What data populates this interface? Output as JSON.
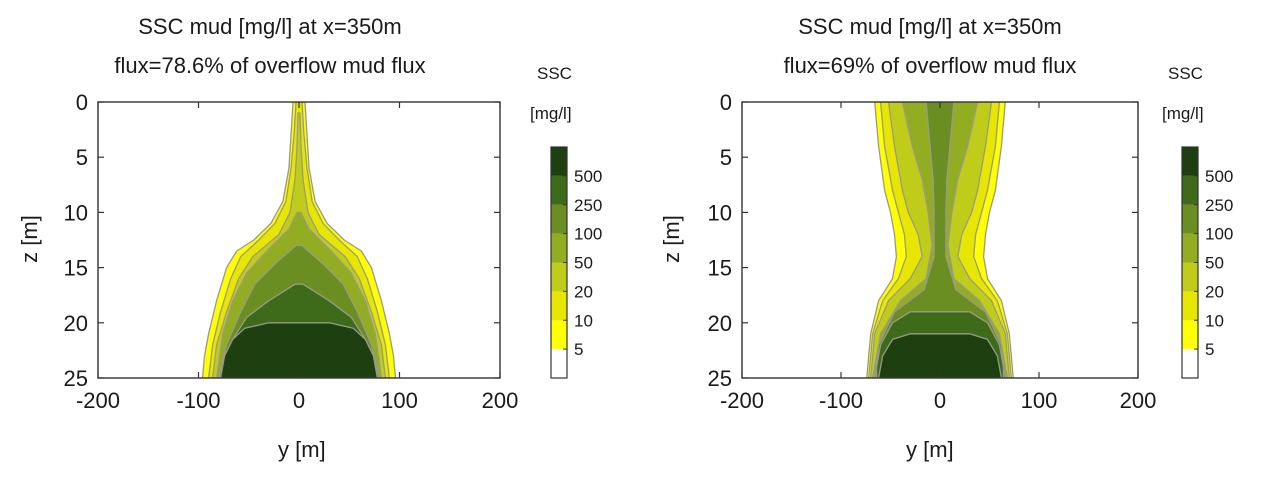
{
  "chart_data": [
    {
      "type": "heatmap",
      "title": "SSC mud [mg/l] at x=350m",
      "subtitle": "flux=78.6% of overflow mud flux",
      "xlabel": "y [m]",
      "ylabel": "z [m]",
      "xlim": [
        -200,
        200
      ],
      "ylim": [
        25,
        0
      ],
      "xticks": [
        "-200",
        "-100",
        "0",
        "100",
        "200"
      ],
      "yticks": [
        "0",
        "5",
        "10",
        "15",
        "20",
        "25"
      ],
      "colorbar": {
        "title_line1": "SSC",
        "title_line2": "[mg/l]",
        "levels": [
          "5",
          "10",
          "20",
          "50",
          "100",
          "250",
          "500"
        ],
        "colors": [
          "#ffffff",
          "#ffff00",
          "#e6e600",
          "#c0cc1a",
          "#93ad22",
          "#6b8e23",
          "#3d6b1a",
          "#1e4010"
        ]
      },
      "contours": [
        {
          "level": "5",
          "half_widths": [
            [
              0,
              6
            ],
            [
              3,
              8
            ],
            [
              6,
              10
            ],
            [
              9,
              16
            ],
            [
              11,
              28
            ],
            [
              12.5,
              45
            ],
            [
              13.5,
              62
            ],
            [
              15,
              72
            ],
            [
              18,
              82
            ],
            [
              21,
              90
            ],
            [
              23,
              94
            ],
            [
              25,
              96
            ]
          ]
        },
        {
          "level": "10",
          "half_widths": [
            [
              0,
              3
            ],
            [
              3,
              5
            ],
            [
              6,
              8
            ],
            [
              9,
              13
            ],
            [
              11,
              24
            ],
            [
              12.5,
              40
            ],
            [
              14,
              58
            ],
            [
              16,
              68
            ],
            [
              19,
              78
            ],
            [
              22,
              86
            ],
            [
              25,
              90
            ]
          ]
        },
        {
          "level": "20",
          "half_widths": [
            [
              1,
              1
            ],
            [
              4,
              2
            ],
            [
              7,
              4
            ],
            [
              10,
              9
            ],
            [
              12,
              20
            ],
            [
              14,
              46
            ],
            [
              16,
              60
            ],
            [
              19,
              72
            ],
            [
              22,
              82
            ],
            [
              25,
              86
            ]
          ]
        },
        {
          "level": "50",
          "half_widths": [
            [
              10,
              2
            ],
            [
              11.5,
              10
            ],
            [
              13.5,
              32
            ],
            [
              15.5,
              52
            ],
            [
              18,
              66
            ],
            [
              21,
              76
            ],
            [
              25,
              82
            ]
          ]
        },
        {
          "level": "100",
          "half_widths": [
            [
              13,
              3
            ],
            [
              14.5,
              22
            ],
            [
              16.5,
              44
            ],
            [
              19,
              58
            ],
            [
              22,
              72
            ],
            [
              25,
              80
            ]
          ]
        },
        {
          "level": "250",
          "half_widths": [
            [
              16.5,
              4
            ],
            [
              18,
              30
            ],
            [
              19.5,
              52
            ],
            [
              21.5,
              66
            ],
            [
              23,
              74
            ],
            [
              25,
              78
            ]
          ]
        },
        {
          "level": "500",
          "half_widths": [
            [
              20,
              30
            ],
            [
              20.5,
              54
            ],
            [
              21.5,
              66
            ],
            [
              23,
              74
            ],
            [
              25,
              78
            ]
          ]
        }
      ]
    },
    {
      "type": "heatmap",
      "title": "SSC mud [mg/l] at x=350m",
      "subtitle": "flux=69% of overflow mud flux",
      "xlabel": "y [m]",
      "ylabel": "z [m]",
      "xlim": [
        -200,
        200
      ],
      "ylim": [
        25,
        0
      ],
      "xticks": [
        "-200",
        "-100",
        "0",
        "100",
        "200"
      ],
      "yticks": [
        "0",
        "5",
        "10",
        "15",
        "20",
        "25"
      ],
      "colorbar": {
        "title_line1": "SSC",
        "title_line2": "[mg/l]",
        "levels": [
          "5",
          "10",
          "20",
          "50",
          "100",
          "250",
          "500"
        ],
        "colors": [
          "#ffffff",
          "#ffff00",
          "#e6e600",
          "#c0cc1a",
          "#93ad22",
          "#6b8e23",
          "#3d6b1a",
          "#1e4010"
        ]
      },
      "contours": [
        {
          "level": "5",
          "half_widths": [
            [
              0,
              66
            ],
            [
              4,
              62
            ],
            [
              8,
              56
            ],
            [
              10,
              50
            ],
            [
              12,
              46
            ],
            [
              14,
              44
            ],
            [
              16,
              48
            ],
            [
              18,
              62
            ],
            [
              21,
              70
            ],
            [
              25,
              74
            ]
          ]
        },
        {
          "level": "10",
          "half_widths": [
            [
              0,
              60
            ],
            [
              4,
              56
            ],
            [
              8,
              48
            ],
            [
              10,
              42
            ],
            [
              12,
              36
            ],
            [
              14,
              34
            ],
            [
              16,
              42
            ],
            [
              18,
              58
            ],
            [
              21,
              68
            ],
            [
              25,
              72
            ]
          ]
        },
        {
          "level": "20",
          "half_widths": [
            [
              0,
              52
            ],
            [
              4,
              46
            ],
            [
              8,
              38
            ],
            [
              10,
              32
            ],
            [
              12,
              22
            ],
            [
              14,
              18
            ],
            [
              16,
              30
            ],
            [
              18,
              52
            ],
            [
              21,
              66
            ],
            [
              25,
              70
            ]
          ]
        },
        {
          "level": "50",
          "half_widths": [
            [
              0,
              38
            ],
            [
              4,
              28
            ],
            [
              7,
              18
            ],
            [
              10,
              12
            ],
            [
              13,
              8
            ],
            [
              16,
              14
            ],
            [
              18,
              40
            ],
            [
              21,
              60
            ],
            [
              25,
              68
            ]
          ]
        },
        {
          "level": "100",
          "half_widths": [
            [
              0,
              14
            ],
            [
              4,
              10
            ],
            [
              7,
              7
            ],
            [
              10,
              6
            ],
            [
              14,
              6
            ],
            [
              17,
              16
            ],
            [
              19,
              46
            ],
            [
              22,
              62
            ],
            [
              25,
              66
            ]
          ]
        },
        {
          "level": "250",
          "half_widths": [
            [
              19,
              30
            ],
            [
              20,
              48
            ],
            [
              22,
              60
            ],
            [
              24,
              64
            ],
            [
              25,
              64
            ]
          ]
        },
        {
          "level": "500",
          "half_widths": [
            [
              21,
              30
            ],
            [
              21.5,
              48
            ],
            [
              23,
              58
            ],
            [
              25,
              62
            ]
          ]
        }
      ]
    }
  ]
}
